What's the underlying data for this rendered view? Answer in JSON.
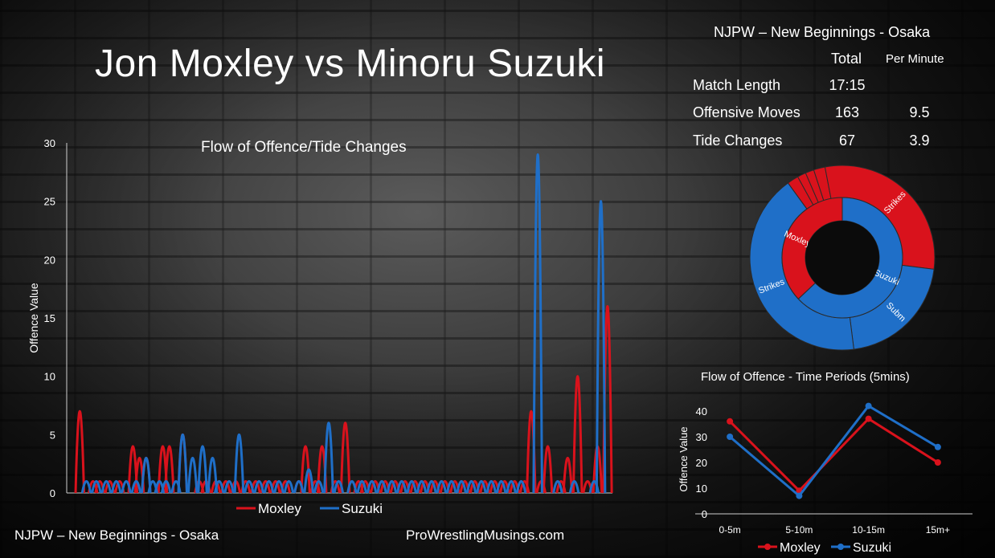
{
  "title": "Jon Moxley vs Minoru Suzuki",
  "stats": {
    "event": "NJPW – New Beginnings - Osaka",
    "header_total": "Total",
    "header_per_minute": "Per Minute",
    "rows": [
      {
        "label": "Match Length",
        "total": "17:15",
        "per_minute": ""
      },
      {
        "label": "Offensive Moves",
        "total": "163",
        "per_minute": "9.5"
      },
      {
        "label": "Tide Changes",
        "total": "67",
        "per_minute": "3.9"
      }
    ]
  },
  "footer": {
    "event": "NJPW – New Beginnings - Osaka",
    "site": "ProWrestlingMusings.com"
  },
  "colors": {
    "moxley": "#d9121c",
    "suzuki": "#1f6fc8",
    "axis": "#ffffff"
  },
  "chart_data": [
    {
      "type": "line",
      "title": "Flow of Offence/Tide Changes",
      "ylabel": "Offence Value",
      "xlabel": "",
      "ylim": [
        0,
        30
      ],
      "yticks": [
        0,
        5,
        10,
        15,
        20,
        25,
        30
      ],
      "x_count": 162,
      "legend": "bottom",
      "series": [
        {
          "name": "Moxley",
          "color": "#d9121c",
          "peaks": [
            [
              2,
              7
            ],
            [
              6,
              1
            ],
            [
              8,
              1
            ],
            [
              11,
              1
            ],
            [
              14,
              1
            ],
            [
              18,
              4
            ],
            [
              20,
              3
            ],
            [
              22,
              3
            ],
            [
              27,
              4
            ],
            [
              29,
              4
            ],
            [
              33,
              5
            ],
            [
              38,
              1
            ],
            [
              40,
              1
            ],
            [
              43,
              1
            ],
            [
              46,
              1
            ],
            [
              49,
              1
            ],
            [
              52,
              1
            ],
            [
              55,
              1
            ],
            [
              58,
              1
            ],
            [
              61,
              1
            ],
            [
              64,
              1
            ],
            [
              68,
              1
            ],
            [
              70,
              4
            ],
            [
              73,
              1
            ],
            [
              75,
              4
            ],
            [
              79,
              1
            ],
            [
              82,
              6
            ],
            [
              86,
              1
            ],
            [
              88,
              1
            ],
            [
              91,
              1
            ],
            [
              94,
              1
            ],
            [
              97,
              1
            ],
            [
              100,
              1
            ],
            [
              103,
              1
            ],
            [
              106,
              1
            ],
            [
              109,
              1
            ],
            [
              112,
              1
            ],
            [
              115,
              1
            ],
            [
              118,
              1
            ],
            [
              121,
              1
            ],
            [
              124,
              1
            ],
            [
              127,
              1
            ],
            [
              130,
              1
            ],
            [
              133,
              1
            ],
            [
              136,
              1
            ],
            [
              138,
              7
            ],
            [
              141,
              1
            ],
            [
              143,
              4
            ],
            [
              147,
              1
            ],
            [
              149,
              3
            ],
            [
              152,
              10
            ],
            [
              155,
              1
            ],
            [
              158,
              4
            ],
            [
              161,
              16
            ]
          ]
        },
        {
          "name": "Suzuki",
          "color": "#1f6fc8",
          "peaks": [
            [
              4,
              1
            ],
            [
              7,
              1
            ],
            [
              10,
              1
            ],
            [
              13,
              1
            ],
            [
              16,
              1
            ],
            [
              19,
              1
            ],
            [
              22,
              3
            ],
            [
              24,
              1
            ],
            [
              26,
              1
            ],
            [
              28,
              1
            ],
            [
              31,
              1
            ],
            [
              33,
              5
            ],
            [
              36,
              3
            ],
            [
              39,
              4
            ],
            [
              42,
              3
            ],
            [
              44,
              1
            ],
            [
              47,
              1
            ],
            [
              50,
              5
            ],
            [
              53,
              1
            ],
            [
              56,
              1
            ],
            [
              59,
              1
            ],
            [
              62,
              1
            ],
            [
              65,
              1
            ],
            [
              68,
              1
            ],
            [
              71,
              2
            ],
            [
              74,
              1
            ],
            [
              77,
              6
            ],
            [
              80,
              1
            ],
            [
              84,
              1
            ],
            [
              87,
              1
            ],
            [
              90,
              1
            ],
            [
              93,
              1
            ],
            [
              96,
              1
            ],
            [
              99,
              1
            ],
            [
              102,
              1
            ],
            [
              105,
              1
            ],
            [
              108,
              1
            ],
            [
              111,
              1
            ],
            [
              114,
              1
            ],
            [
              117,
              1
            ],
            [
              120,
              1
            ],
            [
              123,
              1
            ],
            [
              126,
              1
            ],
            [
              129,
              1
            ],
            [
              132,
              1
            ],
            [
              135,
              1
            ],
            [
              140,
              29
            ],
            [
              146,
              1
            ],
            [
              151,
              1
            ],
            [
              157,
              1
            ],
            [
              159,
              25
            ]
          ]
        }
      ]
    },
    {
      "type": "pie",
      "title": "",
      "inner_ring": [
        {
          "label": "Moxley",
          "value": 37,
          "color": "#d9121c"
        },
        {
          "label": "Suzuki",
          "value": 63,
          "color": "#1f6fc8"
        }
      ],
      "outer_ring": [
        {
          "label": "",
          "value": 2,
          "color": "#d9121c"
        },
        {
          "label": "",
          "value": 1.5,
          "color": "#d9121c"
        },
        {
          "label": "",
          "value": 1.5,
          "color": "#d9121c"
        },
        {
          "label": "",
          "value": 2,
          "color": "#d9121c"
        },
        {
          "label": "Strikes",
          "value": 30,
          "color": "#d9121c"
        },
        {
          "label": "Subm",
          "value": 21,
          "color": "#1f6fc8"
        },
        {
          "label": "Strikes",
          "value": 42,
          "color": "#1f6fc8"
        }
      ]
    },
    {
      "type": "line",
      "title": "Flow of Offence  - Time Periods (5mins)",
      "ylabel": "Offence Value",
      "xlabel": "",
      "categories": [
        "0-5m",
        "5-10m",
        "10-15m",
        "15m+"
      ],
      "ylim": [
        0,
        40
      ],
      "yticks": [
        0,
        10,
        20,
        30,
        40
      ],
      "legend": "bottom",
      "series": [
        {
          "name": "Moxley",
          "color": "#d9121c",
          "values": [
            36,
            9,
            37,
            20
          ]
        },
        {
          "name": "Suzuki",
          "color": "#1f6fc8",
          "values": [
            30,
            7,
            42,
            26
          ]
        }
      ]
    }
  ]
}
